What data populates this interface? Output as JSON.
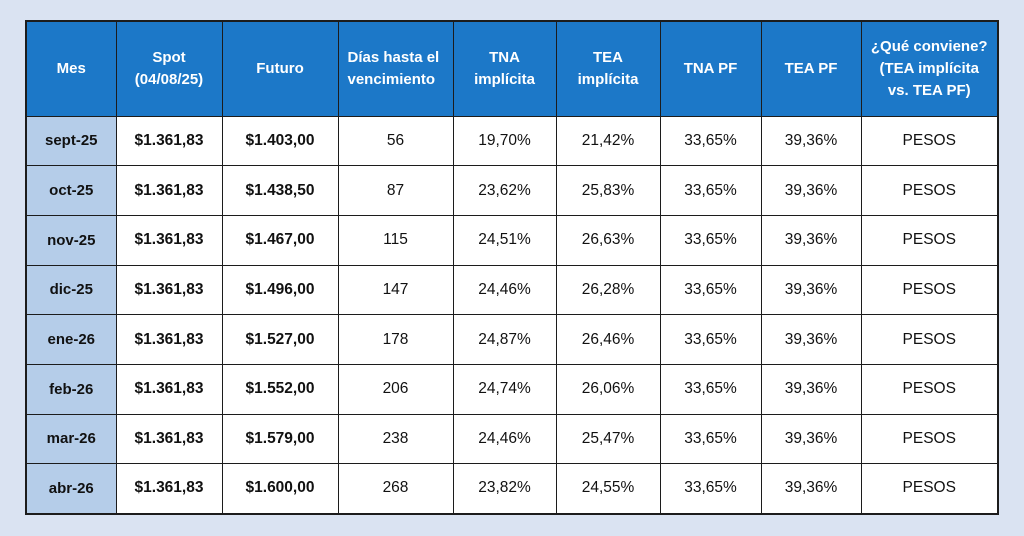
{
  "colors": {
    "page_background": "#DAE3F2",
    "header_background": "#1C78C8",
    "month_column_background": "#B5CDE9",
    "cell_background": "#FFFFFF",
    "border": "#1C1C1C",
    "header_text": "#FFFFFF",
    "body_text": "#111111"
  },
  "chart_data": {
    "type": "table",
    "title": "",
    "legend": "none",
    "grid": "on",
    "columns": [
      {
        "key": "mes",
        "label": "Mes",
        "label_lines": [
          "Mes"
        ],
        "align": "center"
      },
      {
        "key": "spot",
        "label": "Spot (04/08/25)",
        "label_lines": [
          "Spot",
          "(04/08/25)"
        ],
        "align": "center"
      },
      {
        "key": "futuro",
        "label": "Futuro",
        "label_lines": [
          "Futuro"
        ],
        "align": "center"
      },
      {
        "key": "dias-hasta-el-vencimiento",
        "label": "Días hasta el vencimiento",
        "label_lines": [
          "Días hasta el",
          "vencimiento"
        ],
        "align": "left"
      },
      {
        "key": "tna-implicita",
        "label": "TNA implícita",
        "label_lines": [
          "TNA",
          "implícita"
        ],
        "align": "center"
      },
      {
        "key": "tea-implicita",
        "label": "TEA implícita",
        "label_lines": [
          "TEA",
          "implícita"
        ],
        "align": "center"
      },
      {
        "key": "tna-pf",
        "label": "TNA PF",
        "label_lines": [
          "TNA PF"
        ],
        "align": "center"
      },
      {
        "key": "tea-pf",
        "label": "TEA PF",
        "label_lines": [
          "TEA PF"
        ],
        "align": "center"
      },
      {
        "key": "que-conviene",
        "label": "¿Qué conviene? (TEA implícita vs. TEA PF)",
        "label_lines": [
          "¿Qué conviene?",
          "(TEA implícita",
          "vs. TEA PF)"
        ],
        "align": "center"
      }
    ],
    "rows": [
      [
        "sept-25",
        "$1.361,83",
        "$1.403,00",
        "56",
        "19,70%",
        "21,42%",
        "33,65%",
        "39,36%",
        "PESOS"
      ],
      [
        "oct-25",
        "$1.361,83",
        "$1.438,50",
        "87",
        "23,62%",
        "25,83%",
        "33,65%",
        "39,36%",
        "PESOS"
      ],
      [
        "nov-25",
        "$1.361,83",
        "$1.467,00",
        "115",
        "24,51%",
        "26,63%",
        "33,65%",
        "39,36%",
        "PESOS"
      ],
      [
        "dic-25",
        "$1.361,83",
        "$1.496,00",
        "147",
        "24,46%",
        "26,28%",
        "33,65%",
        "39,36%",
        "PESOS"
      ],
      [
        "ene-26",
        "$1.361,83",
        "$1.527,00",
        "178",
        "24,87%",
        "26,46%",
        "33,65%",
        "39,36%",
        "PESOS"
      ],
      [
        "feb-26",
        "$1.361,83",
        "$1.552,00",
        "206",
        "24,74%",
        "26,06%",
        "33,65%",
        "39,36%",
        "PESOS"
      ],
      [
        "mar-26",
        "$1.361,83",
        "$1.579,00",
        "238",
        "24,46%",
        "25,47%",
        "33,65%",
        "39,36%",
        "PESOS"
      ],
      [
        "abr-26",
        "$1.361,83",
        "$1.600,00",
        "268",
        "23,82%",
        "24,55%",
        "33,65%",
        "39,36%",
        "PESOS"
      ]
    ]
  }
}
